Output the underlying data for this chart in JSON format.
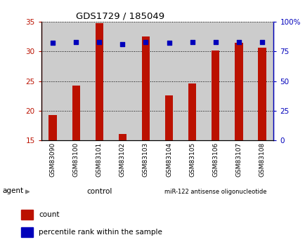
{
  "title": "GDS1729 / 185049",
  "categories": [
    "GSM83090",
    "GSM83100",
    "GSM83101",
    "GSM83102",
    "GSM83103",
    "GSM83104",
    "GSM83105",
    "GSM83106",
    "GSM83107",
    "GSM83108"
  ],
  "red_values": [
    19.3,
    24.2,
    34.8,
    16.1,
    32.5,
    22.6,
    24.6,
    30.1,
    31.5,
    30.6
  ],
  "blue_values": [
    82,
    83,
    83,
    81,
    83,
    82.5,
    83,
    83,
    83,
    83
  ],
  "ylim_left": [
    15,
    35
  ],
  "ylim_right": [
    0,
    100
  ],
  "yticks_left": [
    15,
    20,
    25,
    30,
    35
  ],
  "yticks_right": [
    0,
    25,
    50,
    75,
    100
  ],
  "ytick_labels_right": [
    "0",
    "25",
    "50",
    "75",
    "100%"
  ],
  "bar_color": "#bb1100",
  "dot_color": "#0000bb",
  "grid_color": "#000000",
  "bg_color": "#ffffff",
  "col_bg_color": "#cccccc",
  "group1_label": "control",
  "group2_label": "miR-122 antisense oligonucleotide",
  "group1_color": "#ccffcc",
  "group2_color": "#66dd66",
  "legend_count": "count",
  "legend_percentile": "percentile rank within the sample",
  "agent_label": "agent"
}
